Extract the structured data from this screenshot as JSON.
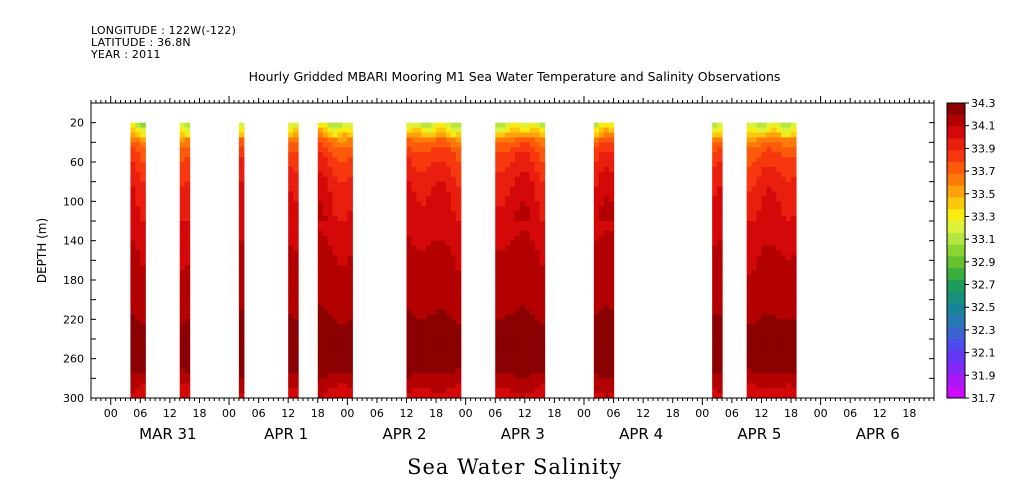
{
  "header": {
    "longitude": "LONGITUDE : 122W(-122)",
    "latitude": "LATITUDE : 36.8N",
    "year": "YEAR : 2011"
  },
  "chart_data": {
    "type": "heatmap",
    "title": "Hourly Gridded MBARI Mooring M1 Sea Water Temperature and Salinity Observations",
    "bottom_title": "Sea Water Salinity",
    "ylabel": "DEPTH (m)",
    "ylim": [
      300,
      0
    ],
    "y_ticks": [
      20,
      60,
      100,
      140,
      180,
      220,
      260,
      300
    ],
    "x_tick_labels": [
      "00",
      "06",
      "12",
      "18",
      "00",
      "06",
      "12",
      "18",
      "00",
      "06",
      "12",
      "18",
      "00",
      "06",
      "12",
      "18",
      "00",
      "06",
      "12",
      "18",
      "00",
      "06",
      "12",
      "18",
      "00",
      "06",
      "12",
      "18"
    ],
    "day_labels": [
      "MAR 31",
      "APR  1",
      "APR  2",
      "APR  3",
      "APR  4",
      "APR  5",
      "APR  6"
    ],
    "colorbar_levels": [
      "34.3",
      "34.1",
      "33.9",
      "33.7",
      "33.5",
      "33.3",
      "33.1",
      "32.9",
      "32.7",
      "32.5",
      "32.3",
      "32.1",
      "31.9",
      "31.7"
    ],
    "colors": [
      "#8b0000",
      "#b30000",
      "#d40808",
      "#ea1e0e",
      "#f7380e",
      "#fb5a0a",
      "#fd7a06",
      "#fea10a",
      "#fcc80c",
      "#f8ec10",
      "#dcf23a",
      "#b4e640",
      "#8cd432",
      "#64c22c",
      "#3aae3c",
      "#1c9c5c",
      "#18907c",
      "#18849a",
      "#2878b4",
      "#3864d0",
      "#4c4cec",
      "#6436f4",
      "#8426f8",
      "#a818f8",
      "#cc0cfc"
    ],
    "data_segments_hours": [
      [
        4,
        7
      ],
      [
        14,
        16
      ],
      [
        26,
        27
      ],
      [
        36,
        38
      ],
      [
        42,
        49
      ],
      [
        60,
        71
      ],
      [
        78,
        88
      ],
      [
        98,
        102
      ],
      [
        122,
        124
      ],
      [
        129,
        139
      ]
    ],
    "profile_depths": [
      20,
      35,
      50,
      70,
      90,
      110,
      130,
      150,
      175,
      200,
      230,
      265,
      285,
      300
    ],
    "profile_salinity": [
      33.2,
      33.6,
      33.8,
      33.9,
      33.98,
      34.02,
      34.06,
      34.1,
      34.12,
      34.14,
      34.24,
      34.28,
      34.12,
      34.05
    ]
  }
}
